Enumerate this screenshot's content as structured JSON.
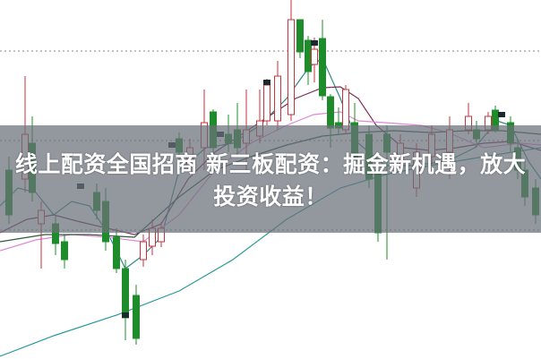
{
  "headline": {
    "line1": "线上配资全国招商 新三板配资：掘金新机遇，放大",
    "line2": "投资收益！"
  },
  "colors": {
    "up_candle": "#c8323c",
    "down_candle": "#1e8c2a",
    "overlay": "#69707a",
    "gridline": "#888888"
  }
}
